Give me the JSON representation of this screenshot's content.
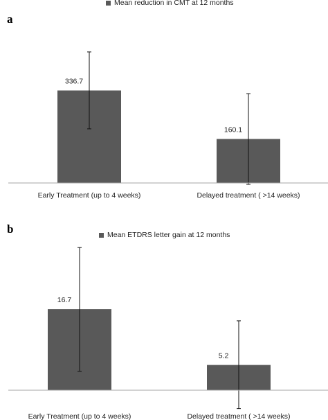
{
  "chart_data": [
    {
      "type": "bar",
      "panel_label": "a",
      "legend": "Mean reduction in CMT at 12 months",
      "categories": [
        "Early Treatment (up to 4 weeks)",
        "Delayed treatment ( >14 weeks)"
      ],
      "series": [
        {
          "name": "Mean reduction in CMT at 12 months",
          "values": [
            336.7,
            160.1
          ],
          "data_labels": [
            "336.7",
            "160.1"
          ],
          "error_low": [
            197,
            -5
          ],
          "error_high": [
            477,
            325
          ]
        }
      ],
      "bar_color": "#595959",
      "ylim": [
        0,
        520
      ],
      "grid": false,
      "legend_position": "top"
    },
    {
      "type": "bar",
      "panel_label": "b",
      "legend": "Mean ETDRS letter gain at 12 months",
      "categories": [
        "Early Treatment (up to 4 weeks)",
        "Delayed treatment ( >14 weeks)"
      ],
      "series": [
        {
          "name": "Mean ETDRS letter gain at 12 months",
          "values": [
            16.7,
            5.2
          ],
          "data_labels": [
            "16.7",
            "5.2"
          ],
          "error_low": [
            3.9,
            -3.8
          ],
          "error_high": [
            29.4,
            14.3
          ]
        }
      ],
      "bar_color": "#595959",
      "ylim": [
        -5,
        35
      ],
      "grid": false,
      "legend_position": "top"
    }
  ]
}
